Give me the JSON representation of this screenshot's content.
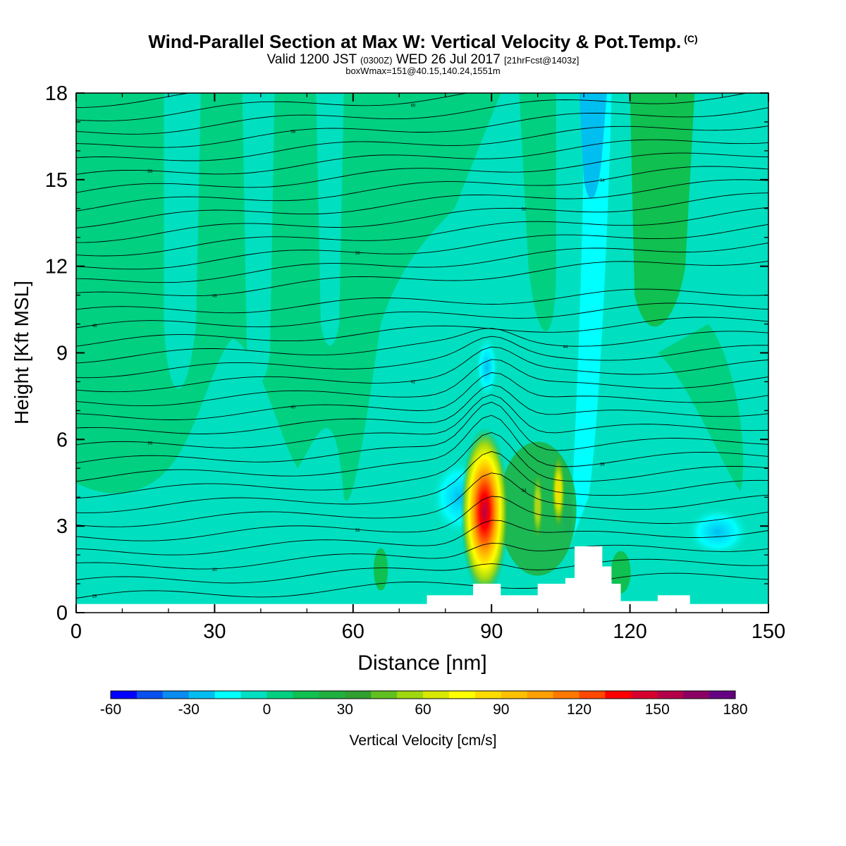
{
  "header": {
    "title": "Wind-Parallel Section at Max W: Vertical Velocity & Pot.Temp.",
    "title_mark": "(C)",
    "valid_prefix": "Valid 1200 JST",
    "valid_z": "(0300Z)",
    "valid_date": "WED 26 Jul 2017",
    "forecast": "[21hrFcst@1403z]",
    "boxwmax": "boxWmax=151@40.15,140.24,1551m"
  },
  "chart_data": {
    "type": "heatmap",
    "xlabel": "Distance [nm]",
    "ylabel": "Height [Kft MSL]",
    "xlim": [
      0,
      150
    ],
    "ylim": [
      0,
      18
    ],
    "xticks": [
      0,
      30,
      60,
      90,
      120,
      150
    ],
    "yticks": [
      0,
      3,
      6,
      9,
      12,
      15,
      18
    ],
    "colorbar": {
      "label": "Vertical Velocity [cm/s]",
      "ticks": [
        -60,
        -30,
        0,
        30,
        60,
        90,
        120,
        150,
        180
      ],
      "colors": [
        "#0000ff",
        "#0a50f0",
        "#0a8cf0",
        "#00bef0",
        "#00ffff",
        "#00e0c0",
        "#00d080",
        "#10c050",
        "#20b040",
        "#30a030",
        "#60c020",
        "#a0d810",
        "#d8e800",
        "#ffff00",
        "#ffdc00",
        "#ffc000",
        "#ffa000",
        "#ff7800",
        "#ff4800",
        "#ff0000",
        "#d8002e",
        "#b4004a",
        "#8c0064",
        "#640082"
      ]
    },
    "vertical_velocity_updraft": {
      "max_cm_s": 151,
      "location_nm": 90,
      "top_kft": 6.0,
      "secondary_updraft_nm": 104,
      "secondary_top_kft": 5.5
    },
    "downdraft_features": [
      {
        "x_nm": 110,
        "y_kft": [
          2.3,
          18
        ],
        "min_cm_s": -40
      },
      {
        "x_nm": 83,
        "y_kft": [
          3,
          5
        ],
        "min_cm_s": -20
      }
    ],
    "terrain_kft": {
      "x": [
        76,
        80,
        85,
        86,
        88,
        90,
        92,
        94,
        96,
        100,
        102,
        104,
        106,
        108,
        110,
        112,
        114,
        116,
        118,
        126,
        127,
        132,
        133
      ],
      "height": [
        0.6,
        0.6,
        0.6,
        1.0,
        1.0,
        1.0,
        0.6,
        0.6,
        0.6,
        1.0,
        1.0,
        1.0,
        1.2,
        2.3,
        2.3,
        2.3,
        1.6,
        1.0,
        0.4,
        0.6,
        0.6,
        0.6,
        0.3
      ]
    },
    "theta_contour_labels": [
      "28",
      "30",
      "32",
      "34",
      "36",
      "38",
      "40",
      "42",
      "44",
      "46",
      "48",
      "50",
      "52",
      "54",
      "56",
      "58",
      "60",
      "62"
    ]
  },
  "colors": {
    "background_field": "#00e0c0",
    "mid_green": "#00d080",
    "contour": "#000000"
  }
}
